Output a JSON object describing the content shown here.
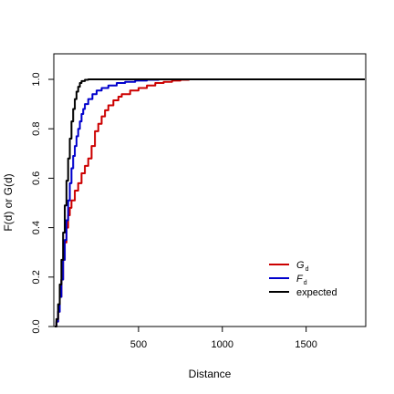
{
  "chart_data": {
    "type": "line",
    "title": "",
    "xlabel": "Distance",
    "ylabel": "F(d) or G(d)",
    "xlim": [
      0,
      1850
    ],
    "ylim": [
      0,
      1.1
    ],
    "x_ticks": [
      500,
      1000,
      1500
    ],
    "y_ticks": [
      0.0,
      0.2,
      0.4,
      0.6,
      0.8,
      1.0
    ],
    "x_tick_labels": [
      "500",
      "1000",
      "1500"
    ],
    "y_tick_labels": [
      "0.0",
      "0.2",
      "0.4",
      "0.6",
      "0.8",
      "1.0"
    ],
    "grid": false,
    "legend_position": "bottom-right",
    "series": [
      {
        "name": "G",
        "subscript": "d",
        "color": "#cc0000",
        "points": [
          [
            0,
            0
          ],
          [
            10,
            0.02
          ],
          [
            20,
            0.06
          ],
          [
            30,
            0.12
          ],
          [
            40,
            0.19
          ],
          [
            50,
            0.27
          ],
          [
            60,
            0.34
          ],
          [
            70,
            0.4
          ],
          [
            80,
            0.45
          ],
          [
            90,
            0.48
          ],
          [
            100,
            0.51
          ],
          [
            120,
            0.55
          ],
          [
            140,
            0.58
          ],
          [
            160,
            0.62
          ],
          [
            180,
            0.65
          ],
          [
            200,
            0.68
          ],
          [
            220,
            0.73
          ],
          [
            240,
            0.79
          ],
          [
            260,
            0.82
          ],
          [
            280,
            0.85
          ],
          [
            300,
            0.875
          ],
          [
            320,
            0.895
          ],
          [
            350,
            0.915
          ],
          [
            380,
            0.93
          ],
          [
            400,
            0.94
          ],
          [
            450,
            0.955
          ],
          [
            500,
            0.965
          ],
          [
            550,
            0.975
          ],
          [
            600,
            0.985
          ],
          [
            650,
            0.99
          ],
          [
            700,
            0.995
          ],
          [
            750,
            0.998
          ],
          [
            800,
            1.0
          ],
          [
            930,
            1.0
          ]
        ]
      },
      {
        "name": "F",
        "subscript": "d",
        "color": "#0000cc",
        "points": [
          [
            0,
            0
          ],
          [
            10,
            0.02
          ],
          [
            20,
            0.06
          ],
          [
            30,
            0.12
          ],
          [
            40,
            0.19
          ],
          [
            50,
            0.27
          ],
          [
            60,
            0.35
          ],
          [
            70,
            0.43
          ],
          [
            80,
            0.51
          ],
          [
            90,
            0.58
          ],
          [
            100,
            0.64
          ],
          [
            110,
            0.69
          ],
          [
            120,
            0.73
          ],
          [
            130,
            0.77
          ],
          [
            140,
            0.8
          ],
          [
            150,
            0.83
          ],
          [
            160,
            0.86
          ],
          [
            170,
            0.88
          ],
          [
            180,
            0.9
          ],
          [
            200,
            0.92
          ],
          [
            225,
            0.94
          ],
          [
            250,
            0.955
          ],
          [
            280,
            0.965
          ],
          [
            320,
            0.975
          ],
          [
            370,
            0.985
          ],
          [
            420,
            0.99
          ],
          [
            480,
            0.995
          ],
          [
            550,
            0.998
          ],
          [
            620,
            1.0
          ],
          [
            1850,
            1.0
          ]
        ]
      },
      {
        "name": "expected",
        "color": "#000000",
        "points": [
          [
            0,
            0
          ],
          [
            10,
            0.03
          ],
          [
            20,
            0.09
          ],
          [
            30,
            0.17
          ],
          [
            40,
            0.27
          ],
          [
            50,
            0.38
          ],
          [
            60,
            0.49
          ],
          [
            70,
            0.59
          ],
          [
            80,
            0.68
          ],
          [
            90,
            0.76
          ],
          [
            100,
            0.83
          ],
          [
            110,
            0.88
          ],
          [
            120,
            0.92
          ],
          [
            130,
            0.95
          ],
          [
            140,
            0.97
          ],
          [
            150,
            0.985
          ],
          [
            160,
            0.993
          ],
          [
            180,
            0.998
          ],
          [
            200,
            1.0
          ],
          [
            1850,
            1.0
          ]
        ]
      }
    ]
  }
}
